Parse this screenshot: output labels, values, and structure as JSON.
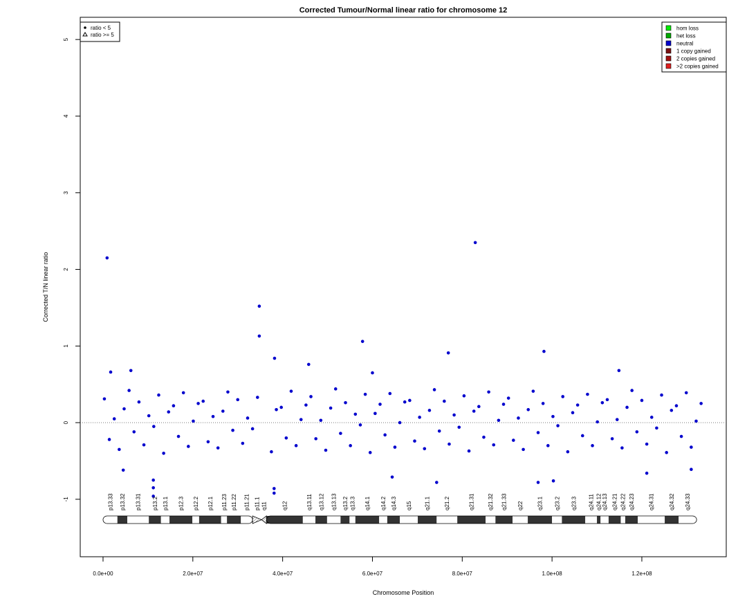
{
  "chart_data": {
    "type": "scatter",
    "title": "Corrected Tumour/Normal linear ratio for chromosome  12",
    "x_label": "Chromosome Position",
    "y_label": "Corrected T/N linear ratio",
    "xlim": [
      -5080000,
      138800000
    ],
    "ylim": [
      -1.75,
      5.29
    ],
    "xticks": [
      {
        "value": 0,
        "label": "0.0e+00"
      },
      {
        "value": 20000000,
        "label": "2.0e+07"
      },
      {
        "value": 40000000,
        "label": "4.0e+07"
      },
      {
        "value": 60000000,
        "label": "6.0e+07"
      },
      {
        "value": 80000000,
        "label": "8.0e+07"
      },
      {
        "value": 100000000,
        "label": "1.0e+08"
      },
      {
        "value": 120000000,
        "label": "1.2e+08"
      }
    ],
    "yticks": [
      -1,
      0,
      1,
      2,
      3,
      4,
      5
    ],
    "reference_line": 0,
    "shape_legend": [
      "ratio < 5",
      "ratio >= 5"
    ],
    "triangle_threshold": 5,
    "status_legend": [
      {
        "label": "hom loss",
        "color": "#00ee00"
      },
      {
        "label": "het loss",
        "color": "#00aa00"
      },
      {
        "label": "neutral",
        "color": "#0000cd"
      },
      {
        "label": "1 copy gained",
        "color": "#7a1010"
      },
      {
        "label": "2 copies gained",
        "color": "#a01010"
      },
      {
        "label": ">2 copies gained",
        "color": "#e02020"
      }
    ],
    "series": [
      {
        "status": 2,
        "x": [
          300000.0,
          1400000.0,
          2500000.0,
          3600000.0,
          4700000.0,
          5800000.0,
          6900000.0,
          8000000.0,
          9100000.0,
          10200000.0,
          11300000.0,
          12400000.0,
          13500000.0,
          14600000.0,
          15700000.0,
          16800000.0,
          17900000.0,
          19000000.0,
          20100000.0,
          21200000.0,
          22300000.0,
          23400000.0,
          24500000.0,
          25600000.0,
          26700000.0,
          27800000.0,
          28900000.0,
          30000000.0,
          31100000.0,
          32200000.0,
          33300000.0,
          34400000.0,
          37500000.0,
          38600000.0,
          39700000.0,
          40800000.0,
          41900000.0,
          43000000.0,
          44100000.0,
          45200000.0,
          46300000.0,
          47400000.0,
          48500000.0,
          49600000.0,
          50700000.0,
          51800000.0,
          52900000.0,
          54000000.0,
          55100000.0,
          56200000.0,
          57300000.0,
          58400000.0,
          59500000.0,
          60600000.0,
          61700000.0,
          62800000.0,
          63900000.0,
          65000000.0,
          66100000.0,
          67200000.0,
          68300000.0,
          69400000.0,
          70500000.0,
          71600000.0,
          72700000.0,
          73800000.0,
          74900000.0,
          76000000.0,
          77100000.0,
          78200000.0,
          79300000.0,
          80400000.0,
          81500000.0,
          82600000.0,
          83700000.0,
          84800000.0,
          85900000.0,
          87000000.0,
          88100000.0,
          89200000.0,
          90300000.0,
          91400000.0,
          92500000.0,
          93600000.0,
          94700000.0,
          95800000.0,
          96900000.0,
          98000000.0,
          99100000.0,
          100200000.0,
          101300000.0,
          102400000.0,
          103500000.0,
          104600000.0,
          105700000.0,
          106800000.0,
          107900000.0,
          109000000.0,
          110100000.0,
          111200000.0,
          112300000.0,
          113400000.0,
          114500000.0,
          115600000.0,
          116700000.0,
          117800000.0,
          118900000.0,
          120000000.0,
          121100000.0,
          122200000.0,
          123300000.0,
          124400000.0,
          125500000.0,
          126600000.0,
          127700000.0,
          128800000.0,
          129900000.0,
          131000000.0,
          132100000.0,
          133200000.0,
          900000.0,
          34800000.0,
          34800000.0,
          38200000.0,
          38100000.0,
          38100000.0,
          82900000.0,
          57800000.0,
          76900000.0,
          98200000.0,
          45800000.0,
          11200000.0,
          11200000.0,
          11200000.0,
          100300000.0,
          96900000.0,
          121100000.0,
          131000000.0,
          4500000.0,
          64400000.0,
          1700000.0,
          6200000.0,
          74300000.0,
          114900000.0,
          60000000.0
        ],
        "values": [
          0.31,
          -0.22,
          0.05,
          -0.35,
          0.18,
          0.42,
          -0.12,
          0.27,
          -0.29,
          0.09,
          -0.05,
          0.36,
          -0.4,
          0.14,
          0.22,
          -0.18,
          0.39,
          -0.31,
          0.02,
          0.25,
          0.28,
          -0.25,
          0.08,
          -0.33,
          0.15,
          0.4,
          -0.1,
          0.3,
          -0.27,
          0.06,
          -0.08,
          0.33,
          -0.38,
          0.17,
          0.2,
          -0.2,
          0.41,
          -0.3,
          0.04,
          0.23,
          0.34,
          -0.21,
          0.03,
          -0.36,
          0.19,
          0.44,
          -0.14,
          0.26,
          -0.3,
          0.11,
          -0.03,
          0.37,
          -0.39,
          0.12,
          0.24,
          -0.16,
          0.38,
          -0.32,
          0.0,
          0.27,
          0.29,
          -0.24,
          0.07,
          -0.34,
          0.16,
          0.43,
          -0.11,
          0.28,
          -0.28,
          0.1,
          -0.06,
          0.35,
          -0.37,
          0.15,
          0.21,
          -0.19,
          0.4,
          -0.29,
          0.03,
          0.24,
          0.32,
          -0.23,
          0.06,
          -0.35,
          0.17,
          0.41,
          -0.13,
          0.25,
          -0.3,
          0.08,
          -0.04,
          0.34,
          -0.38,
          0.13,
          0.23,
          -0.17,
          0.37,
          -0.3,
          0.01,
          0.26,
          0.3,
          -0.21,
          0.04,
          -0.33,
          0.2,
          0.42,
          -0.12,
          0.29,
          -0.28,
          0.07,
          -0.07,
          0.36,
          -0.39,
          0.16,
          0.22,
          -0.18,
          0.39,
          -0.32,
          0.02,
          0.25,
          2.15,
          1.52,
          1.13,
          0.84,
          -0.86,
          -0.92,
          2.35,
          1.06,
          0.91,
          0.93,
          0.76,
          -0.96,
          -0.85,
          -0.75,
          -0.76,
          -0.78,
          -0.66,
          -0.61,
          -0.62,
          -0.71,
          0.66,
          0.68,
          -0.78,
          0.68,
          0.65
        ]
      }
    ],
    "ideogram": {
      "names": [
        "p13.33",
        "p13.32",
        "p13.31",
        "p13.2",
        "p13.1",
        "p12.3",
        "p12.2",
        "p12.1",
        "p11.23",
        "p11.22",
        "p11.21",
        "p11.1",
        "q11",
        "q12",
        "q13.11",
        "q13.12",
        "q13.13",
        "q13.2",
        "q13.3",
        "q14.1",
        "q14.2",
        "q14.3",
        "q15",
        "q21.1",
        "q21.2",
        "q21.31",
        "q21.32",
        "q21.33",
        "q22",
        "q23.1",
        "q23.2",
        "q23.3",
        "q24.11",
        "q24.12",
        "q24.13",
        "q24.21",
        "q24.22",
        "q24.23",
        "q24.31",
        "q24.32",
        "q24.33"
      ],
      "stains": [
        "gneg",
        "gpos",
        "gneg",
        "gpos",
        "gneg",
        "gpos",
        "gneg",
        "gpos",
        "gneg",
        "gpos",
        "gneg",
        "acen",
        "acen",
        "gpos",
        "gneg",
        "gpos",
        "gneg",
        "gpos",
        "gneg",
        "gpos",
        "gneg",
        "gpos",
        "gneg",
        "gpos",
        "gneg",
        "gpos",
        "gneg",
        "gpos",
        "gneg",
        "gpos",
        "gneg",
        "gpos",
        "gneg",
        "gpos",
        "gneg",
        "gpos",
        "gneg",
        "gpos",
        "gneg",
        "gpos",
        "gneg"
      ],
      "edges": [
        0,
        3200000.0,
        5400000.0,
        10200000.0,
        12900000.0,
        14800000.0,
        19900000.0,
        21400000.0,
        26300000.0,
        27600000.0,
        30700000.0,
        33300000.0,
        35300000.0,
        36400000.0,
        44500000.0,
        47300000.0,
        49900000.0,
        52900000.0,
        54900000.0,
        56200000.0,
        61500000.0,
        63300000.0,
        66100000.0,
        70100000.0,
        74300000.0,
        78900000.0,
        85200000.0,
        87400000.0,
        91200000.0,
        94600000.0,
        100000000.0,
        102200000.0,
        107400000.0,
        110000000.0,
        110800000.0,
        112600000.0,
        115300000.0,
        116300000.0,
        119100000.0,
        125100000.0,
        128200000.0,
        132200000.0
      ]
    }
  }
}
